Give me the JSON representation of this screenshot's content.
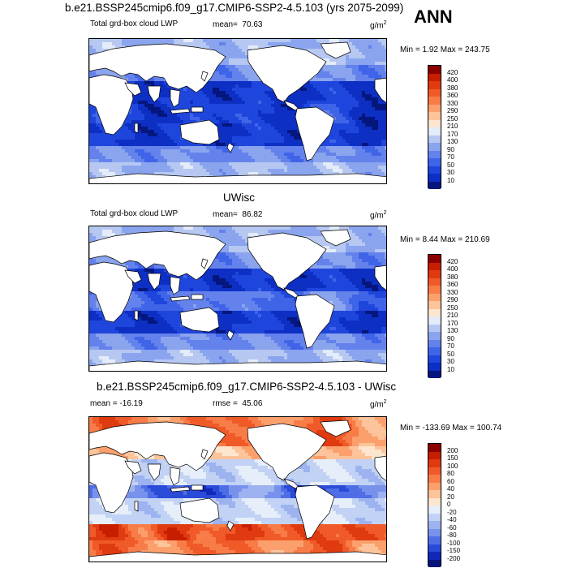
{
  "header": {
    "title": "b.e21.BSSP245cmip6.f09_g17.CMIP6-SSP2-4.5.103 (yrs 2075-2099)",
    "season": "ANN"
  },
  "colors": {
    "land": "#ffffff",
    "coast": "#000000"
  },
  "chart_data": [
    {
      "type": "heatmap",
      "title": "b.e21.BSSP245cmip6.f09_g17.CMIP6-SSP2-4.5.103 (yrs 2075-2099)",
      "variable": "Total grd-box cloud LWP",
      "mean_label": "mean=",
      "mean": "70.63",
      "units": "g/m",
      "units_sup": "2",
      "min_max": "Min =   1.92 Max = 243.75",
      "colorbar": {
        "levels": [
          "420",
          "400",
          "380",
          "360",
          "330",
          "290",
          "250",
          "210",
          "170",
          "130",
          "90",
          "70",
          "50",
          "30",
          "10"
        ],
        "colors": [
          "#8b0000",
          "#c81e00",
          "#e03a10",
          "#f05a28",
          "#f77c48",
          "#fba06c",
          "#fdc39a",
          "#fde6cf",
          "#e3ecf8",
          "#b6c8f2",
          "#8aa4ee",
          "#6482ec",
          "#4064e8",
          "#1f46dc",
          "#0d2fc4",
          "#05177e"
        ]
      }
    },
    {
      "type": "heatmap",
      "title": "UWisc",
      "variable": "Total grd-box cloud LWP",
      "mean_label": "mean=",
      "mean": "86.82",
      "units": "g/m",
      "units_sup": "2",
      "min_max": "Min =   8.44 Max = 210.69",
      "colorbar": {
        "levels": [
          "420",
          "400",
          "380",
          "360",
          "330",
          "290",
          "250",
          "210",
          "170",
          "130",
          "90",
          "70",
          "50",
          "30",
          "10"
        ],
        "colors": [
          "#8b0000",
          "#c81e00",
          "#e03a10",
          "#f05a28",
          "#f77c48",
          "#fba06c",
          "#fdc39a",
          "#fde6cf",
          "#e3ecf8",
          "#b6c8f2",
          "#8aa4ee",
          "#6482ec",
          "#4064e8",
          "#1f46dc",
          "#0d2fc4",
          "#05177e"
        ]
      }
    },
    {
      "type": "heatmap",
      "title": "b.e21.BSSP245cmip6.f09_g17.CMIP6-SSP2-4.5.103 - UWisc",
      "mean_label": "mean =",
      "mean": "-16.19",
      "rmse_label": "rmse =",
      "rmse": "45.06",
      "units": "g/m",
      "units_sup": "2",
      "min_max": "Min = -133.69 Max = 100.74",
      "colorbar": {
        "levels": [
          "200",
          "150",
          "100",
          "80",
          "60",
          "40",
          "20",
          "0",
          "-20",
          "-40",
          "-60",
          "-80",
          "-100",
          "-150",
          "-200"
        ],
        "colors": [
          "#8b0000",
          "#c81e00",
          "#e03a10",
          "#f05a28",
          "#f77c48",
          "#fba06c",
          "#fdc39a",
          "#fde6cf",
          "#e6eefa",
          "#c2d2f5",
          "#9db3f0",
          "#7892ec",
          "#4f6ee6",
          "#2a4ad8",
          "#1228b8",
          "#05137a"
        ]
      }
    }
  ]
}
